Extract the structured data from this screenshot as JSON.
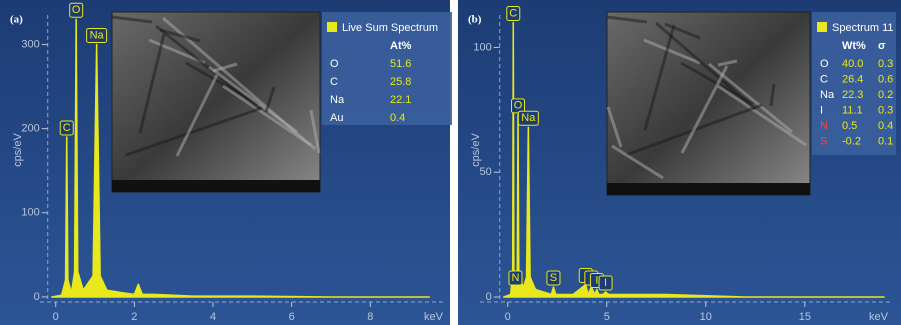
{
  "chart_data": [
    {
      "type": "line",
      "panel_label": "(a)",
      "ylabel": "cps/eV",
      "xlabel": "keV",
      "color": "#e8e81c",
      "x": [
        -0.1,
        0.15,
        0.25,
        0.28,
        0.31,
        0.4,
        0.48,
        0.52,
        0.56,
        0.7,
        0.95,
        1.04,
        1.13,
        1.3,
        1.7,
        2.0,
        2.1,
        2.2,
        2.5,
        3.5,
        5,
        7,
        9.5
      ],
      "values": [
        0,
        2,
        20,
        190,
        20,
        5,
        30,
        330,
        30,
        8,
        25,
        300,
        25,
        8,
        5,
        3,
        15,
        3,
        3,
        1,
        1,
        0,
        0
      ],
      "xlim": [
        -0.4,
        9.9
      ],
      "ylim": [
        -6,
        335
      ],
      "xticks": [
        0,
        2,
        4,
        6,
        8
      ],
      "yticks": [
        0,
        100,
        200,
        300
      ],
      "annotations": [
        {
          "text": "C",
          "x": 0.28,
          "y": 190
        },
        {
          "text": "O",
          "x": 0.52,
          "y": 330
        },
        {
          "text": "Na",
          "x": 1.04,
          "y": 300
        }
      ],
      "legend": {
        "title": "Live Sum Spectrum",
        "columns": [
          "At%"
        ],
        "rows": [
          {
            "element": "O",
            "cells": [
              "51.6"
            ],
            "color": "#ffffff"
          },
          {
            "element": "C",
            "cells": [
              "25.8"
            ],
            "color": "#ffffff"
          },
          {
            "element": "Na",
            "cells": [
              "22.1"
            ],
            "color": "#ffffff"
          },
          {
            "element": "Au",
            "cells": [
              "0.4"
            ],
            "color": "#ffffff"
          }
        ]
      }
    },
    {
      "type": "line",
      "panel_label": "(b)",
      "ylabel": "cps/eV",
      "xlabel": "keV",
      "color": "#e8e81c",
      "x": [
        -0.2,
        0.15,
        0.25,
        0.28,
        0.31,
        0.36,
        0.39,
        0.42,
        0.48,
        0.52,
        0.56,
        0.8,
        0.95,
        1.04,
        1.13,
        1.4,
        2.2,
        2.31,
        2.42,
        3.3,
        3.94,
        4.05,
        4.22,
        4.4,
        4.5,
        4.6,
        4.8,
        4.94,
        5.1,
        6,
        8,
        12,
        19
      ],
      "values": [
        0,
        1,
        10,
        110,
        10,
        3,
        4,
        3,
        8,
        73,
        8,
        4,
        8,
        68,
        8,
        3,
        1,
        4,
        1,
        1,
        5,
        1,
        4,
        1,
        3,
        1,
        1,
        2,
        1,
        1,
        1,
        0,
        0
      ],
      "xlim": [
        -1.4,
        19.3
      ],
      "ylim": [
        -2,
        113
      ],
      "xticks": [
        0,
        5,
        10,
        15
      ],
      "yticks": [
        0,
        50,
        100
      ],
      "annotations": [
        {
          "text": "C",
          "x": 0.28,
          "y": 110
        },
        {
          "text": "O",
          "x": 0.52,
          "y": 73
        },
        {
          "text": "Na",
          "x": 1.04,
          "y": 68
        },
        {
          "text": "N",
          "x": 0.39,
          "y": 4
        },
        {
          "text": "S",
          "x": 2.31,
          "y": 4
        },
        {
          "text": "I",
          "x": 3.94,
          "y": 5
        },
        {
          "text": "I",
          "x": 4.22,
          "y": 4
        },
        {
          "text": "I",
          "x": 4.5,
          "y": 3
        },
        {
          "text": "I",
          "x": 4.94,
          "y": 2
        }
      ],
      "legend": {
        "title": "Spectrum 11",
        "columns": [
          "Wt%",
          "σ"
        ],
        "rows": [
          {
            "element": "O",
            "cells": [
              "40.0",
              "0.3"
            ],
            "color": "#ffffff"
          },
          {
            "element": "C",
            "cells": [
              "26.4",
              "0.6"
            ],
            "color": "#ffffff"
          },
          {
            "element": "Na",
            "cells": [
              "22.3",
              "0.2"
            ],
            "color": "#ffffff"
          },
          {
            "element": "I",
            "cells": [
              "11.1",
              "0.3"
            ],
            "color": "#ffffff"
          },
          {
            "element": "N",
            "cells": [
              "0.5",
              "0.4"
            ],
            "color": "#ff4040"
          },
          {
            "element": "S",
            "cells": [
              "-0.2",
              "0.1"
            ],
            "color": "#ff4040"
          }
        ]
      }
    }
  ]
}
